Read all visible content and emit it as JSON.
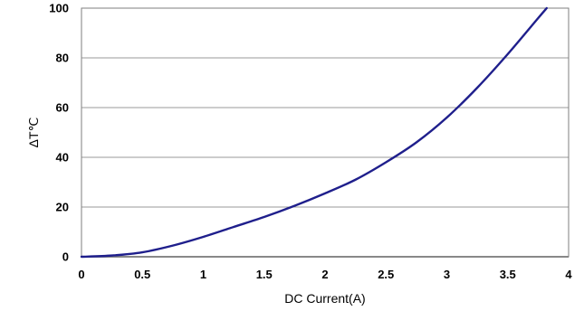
{
  "chart_data": {
    "type": "line",
    "xlabel": "DC Current(A)",
    "ylabel": "ΔT℃",
    "xlim": [
      0,
      4
    ],
    "ylim": [
      0,
      100
    ],
    "x_ticks": [
      {
        "value": 0,
        "label": "0"
      },
      {
        "value": 0.5,
        "label": "0.5"
      },
      {
        "value": 1,
        "label": "1"
      },
      {
        "value": 1.5,
        "label": "1.5"
      },
      {
        "value": 2,
        "label": "2"
      },
      {
        "value": 2.5,
        "label": "2.5"
      },
      {
        "value": 3,
        "label": "3"
      },
      {
        "value": 3.5,
        "label": "3.5"
      },
      {
        "value": 4,
        "label": "4"
      }
    ],
    "y_ticks": [
      {
        "value": 0,
        "label": "0"
      },
      {
        "value": 20,
        "label": "20"
      },
      {
        "value": 40,
        "label": "40"
      },
      {
        "value": 60,
        "label": "60"
      },
      {
        "value": 80,
        "label": "80"
      },
      {
        "value": 100,
        "label": "100"
      }
    ],
    "grid": {
      "horizontal": true,
      "vertical": false
    },
    "line_color": "#1f1f8c",
    "series": [
      {
        "x": [
          0,
          0.25,
          0.5,
          0.75,
          1,
          1.25,
          1.5,
          1.75,
          2,
          2.25,
          2.5,
          2.75,
          3,
          3.25,
          3.5,
          3.75,
          3.82
        ],
        "values": [
          0,
          0.5,
          1.8,
          4.5,
          8,
          12,
          16,
          20.5,
          25.5,
          31,
          38,
          46,
          56,
          68,
          81.5,
          96,
          100
        ]
      }
    ]
  }
}
